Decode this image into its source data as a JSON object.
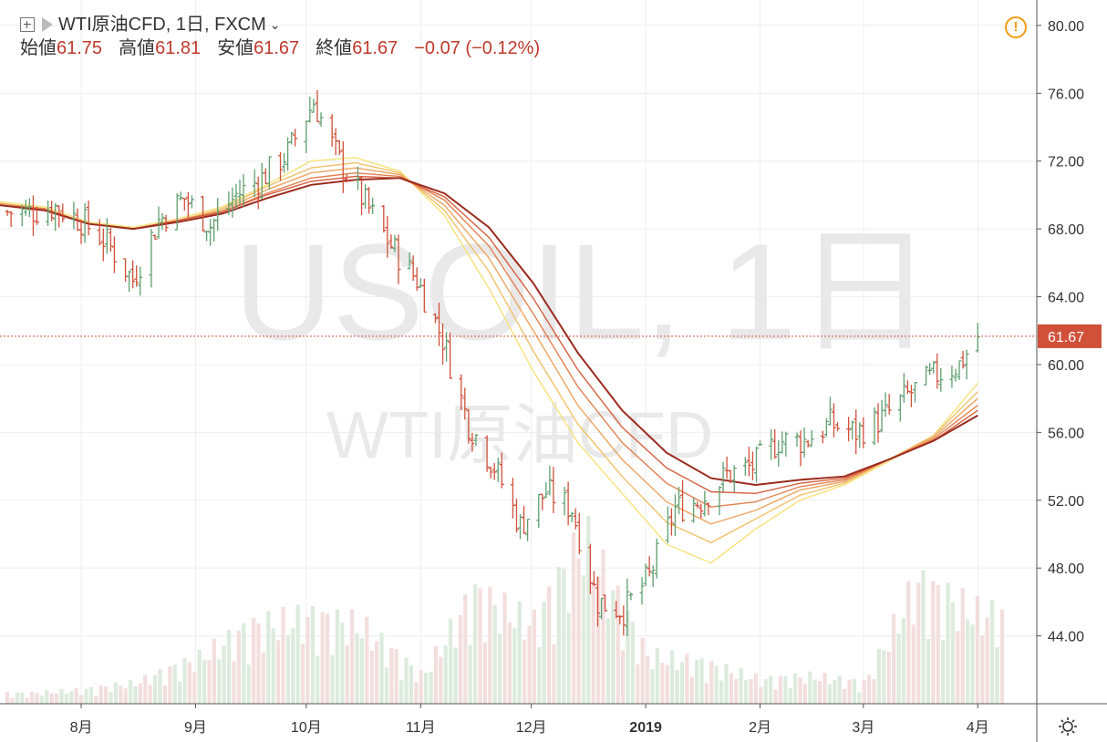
{
  "header": {
    "symbol_title": "WTI原油CFD, 1日, FXCM",
    "ohlc": [
      {
        "label": "始値",
        "value": "61.75"
      },
      {
        "label": "高値",
        "value": "61.81"
      },
      {
        "label": "安値",
        "value": "61.67"
      },
      {
        "label": "終値",
        "value": "61.67"
      }
    ],
    "change": "−0.07 (−0.12%)"
  },
  "watermark": {
    "main": "USOIL, 1日",
    "sub": "WTI原油CFD"
  },
  "icons": {
    "add": "plus-box-icon",
    "flag": "flag-icon",
    "warning": "warning-icon",
    "settings": "gear-icon"
  },
  "colors": {
    "up": "#5f9f6f",
    "down": "#d0503a",
    "price_line": "#d0503a",
    "ma_light": "#f5e27a",
    "ma_dark": "#9b2a1c"
  },
  "chart_data": {
    "type": "candlestick",
    "chart_style": "ohlc-bars",
    "title": "WTI原油CFD, 1日, FXCM",
    "x_tick_labels": [
      "8月",
      "9月",
      "10月",
      "11月",
      "12月",
      "2019",
      "2月",
      "3月",
      "4月"
    ],
    "x_tick_dates": [
      "2018-08-01",
      "2018-09-01",
      "2018-10-01",
      "2018-11-01",
      "2018-12-01",
      "2019-01-01",
      "2019-02-01",
      "2019-03-01",
      "2019-04-01"
    ],
    "y_tick_labels": [
      "80.00",
      "76.00",
      "72.00",
      "68.00",
      "64.00",
      "60.00",
      "56.00",
      "52.00",
      "48.00",
      "44.00"
    ],
    "ylim": [
      40.0,
      81.5
    ],
    "grid": true,
    "last_price": 61.67,
    "last_price_label": "61.67",
    "price_series": {
      "x": [
        "2018-07-18",
        "2018-07-25",
        "2018-08-01",
        "2018-08-08",
        "2018-08-15",
        "2018-08-22",
        "2018-08-29",
        "2018-09-05",
        "2018-09-12",
        "2018-09-19",
        "2018-09-26",
        "2018-10-03",
        "2018-10-10",
        "2018-10-17",
        "2018-10-24",
        "2018-10-31",
        "2018-11-07",
        "2018-11-14",
        "2018-11-21",
        "2018-11-28",
        "2018-12-05",
        "2018-12-12",
        "2018-12-19",
        "2018-12-26",
        "2019-01-02",
        "2019-01-09",
        "2019-01-16",
        "2019-01-23",
        "2019-01-30",
        "2019-02-06",
        "2019-02-13",
        "2019-02-20",
        "2019-02-27",
        "2019-03-06",
        "2019-03-13",
        "2019-03-20",
        "2019-03-27",
        "2019-04-01"
      ],
      "close": [
        69.0,
        69.3,
        68.5,
        67.2,
        65.0,
        68.5,
        69.8,
        68.2,
        70.0,
        71.0,
        72.5,
        75.5,
        72.0,
        69.5,
        67.0,
        65.0,
        61.5,
        56.5,
        54.0,
        50.5,
        52.5,
        51.5,
        46.0,
        45.5,
        47.5,
        51.5,
        52.0,
        53.5,
        54.0,
        55.5,
        55.5,
        56.5,
        56.0,
        56.8,
        58.2,
        59.3,
        60.0,
        61.67
      ]
    },
    "volume": {
      "x": [
        "2018-07-18",
        "2018-08-01",
        "2018-08-15",
        "2018-09-01",
        "2018-09-15",
        "2018-10-01",
        "2018-10-15",
        "2018-11-01",
        "2018-11-15",
        "2018-12-01",
        "2018-12-15",
        "2019-01-01",
        "2019-01-15",
        "2019-02-01",
        "2019-02-15",
        "2019-03-01",
        "2019-03-15",
        "2019-04-01"
      ],
      "values": [
        0.3,
        0.4,
        0.6,
        1.3,
        2.2,
        2.5,
        2.3,
        0.8,
        3.2,
        2.3,
        4.8,
        1.4,
        1.2,
        0.7,
        0.8,
        0.6,
        3.5,
        2.6
      ]
    },
    "moving_averages": [
      {
        "label": "",
        "values": [
          69.6,
          69.3,
          68.4,
          68.1,
          68.6,
          69.3,
          70.6,
          72.0,
          72.2,
          71.4,
          68.8,
          64.5,
          59.6,
          55.4,
          52.4,
          49.4,
          48.3,
          50.3,
          52.0,
          52.9,
          54.3,
          55.8,
          58.9
        ]
      },
      {
        "label": "",
        "values": [
          69.5,
          69.2,
          68.3,
          68.0,
          68.5,
          69.2,
          70.5,
          71.6,
          71.9,
          71.3,
          69.1,
          65.5,
          60.8,
          56.5,
          53.4,
          50.7,
          49.5,
          50.9,
          52.3,
          53.0,
          54.4,
          55.8,
          58.4
        ]
      },
      {
        "label": "",
        "values": [
          69.5,
          69.2,
          68.3,
          68.0,
          68.5,
          69.1,
          70.3,
          71.3,
          71.6,
          71.2,
          69.4,
          66.3,
          62.0,
          57.6,
          54.4,
          51.9,
          50.6,
          51.4,
          52.6,
          53.1,
          54.4,
          55.7,
          58.0
        ]
      },
      {
        "label": "",
        "values": [
          69.4,
          69.2,
          68.3,
          68.0,
          68.5,
          69.0,
          70.1,
          71.0,
          71.3,
          71.1,
          69.7,
          67.0,
          63.0,
          58.7,
          55.4,
          53.0,
          51.6,
          51.9,
          52.8,
          53.2,
          54.4,
          55.6,
          57.6
        ]
      },
      {
        "label": "",
        "values": [
          69.4,
          69.1,
          68.3,
          68.0,
          68.5,
          69.0,
          70.0,
          70.8,
          71.1,
          71.0,
          69.9,
          67.5,
          63.9,
          59.7,
          56.3,
          53.9,
          52.5,
          52.4,
          53.0,
          53.3,
          54.4,
          55.5,
          57.3
        ]
      },
      {
        "label": "",
        "values": [
          69.4,
          69.1,
          68.3,
          68.0,
          68.4,
          68.9,
          69.8,
          70.6,
          70.9,
          71.0,
          70.1,
          68.1,
          64.8,
          60.7,
          57.3,
          54.8,
          53.3,
          52.9,
          53.2,
          53.4,
          54.4,
          55.5,
          57.0
        ]
      }
    ]
  }
}
